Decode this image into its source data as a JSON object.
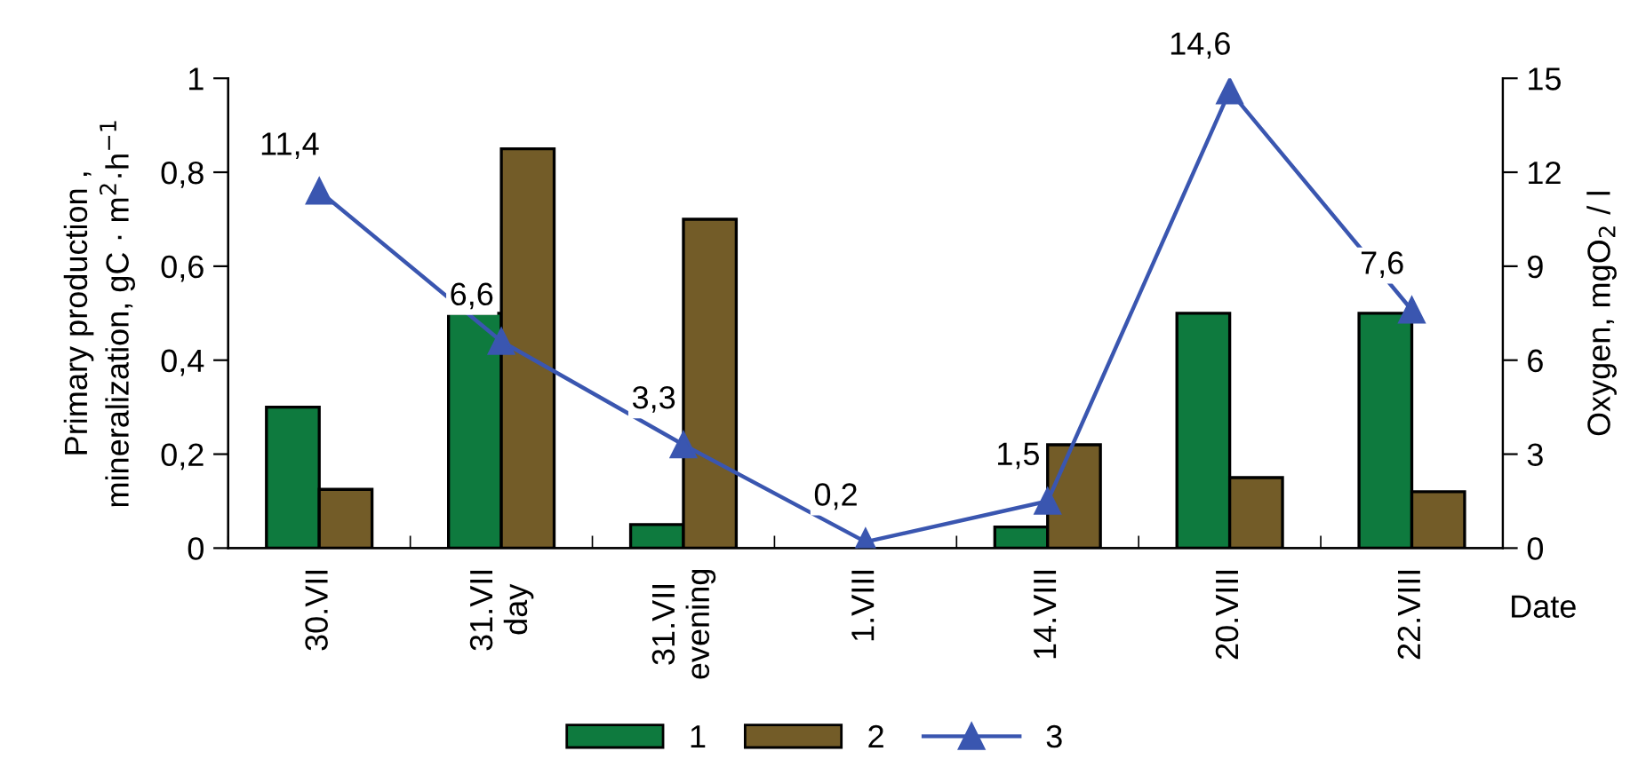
{
  "chart_data": {
    "type": "bar",
    "categories": [
      "30.VII",
      "31.VII\nday",
      "31.VII\nevening",
      "1.VIII",
      "14.VIII",
      "20.VIII",
      "22.VIII"
    ],
    "series": [
      {
        "name": "1",
        "color": "#0e7a3e",
        "values": [
          0.3,
          0.5,
          0.05,
          null,
          0.045,
          0.5,
          0.5
        ]
      },
      {
        "name": "2",
        "color": "#735c28",
        "values": [
          0.125,
          0.85,
          0.7,
          null,
          0.22,
          0.15,
          0.12
        ]
      },
      {
        "name": "3",
        "type": "line",
        "axis": "y2",
        "color": "#3a56b0",
        "marker": "triangle",
        "values": [
          11.4,
          6.6,
          3.3,
          0.2,
          1.5,
          14.6,
          7.6
        ],
        "value_labels": [
          "11,4",
          "6,6",
          "3,3",
          "0,2",
          "1,5",
          "14,6",
          "7,6"
        ]
      }
    ],
    "xlabel": "Date",
    "ylabel": "Primary production ,\nmineralization, gC · m$^{2}$·h$^{−1}$",
    "y2label": "Oxygen, mgO$_{2}$ / l",
    "ylim": [
      0,
      1
    ],
    "yticks": [
      0,
      {
        "value": 0.2,
        "label": "0,2"
      },
      {
        "value": 0.4,
        "label": "0,4"
      },
      {
        "value": 0.6,
        "label": "0,6"
      },
      {
        "value": 0.8,
        "label": "0,8"
      },
      1
    ],
    "y2lim": [
      0,
      15
    ],
    "y2ticks": [
      0,
      3,
      6,
      9,
      12,
      15
    ],
    "grid": false,
    "legend": "bottom"
  }
}
